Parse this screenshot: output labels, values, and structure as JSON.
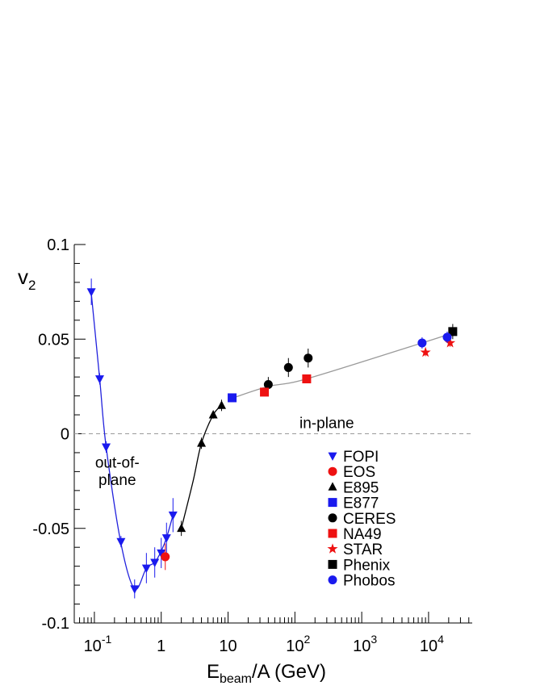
{
  "chart_data": {
    "type": "scatter",
    "xscale": "log",
    "xlim": [
      0.05,
      45000
    ],
    "ylim": [
      -0.1,
      0.1
    ],
    "grid": false,
    "legend_position": "bottom-right",
    "xlabel": {
      "main": "E",
      "sub": "beam",
      "tail": "/A (GeV)"
    },
    "ylabel": {
      "main": "v",
      "sub": "2"
    },
    "y_ticks": [
      {
        "v": -0.1,
        "label": "-0.1"
      },
      {
        "v": -0.05,
        "label": "-0.05"
      },
      {
        "v": 0,
        "label": "0"
      },
      {
        "v": 0.05,
        "label": "0.05"
      },
      {
        "v": 0.1,
        "label": "0.1"
      }
    ],
    "x_ticks": [
      {
        "v": 0.1,
        "base": "10",
        "exp": "-1"
      },
      {
        "v": 1,
        "base": "1",
        "exp": ""
      },
      {
        "v": 10,
        "base": "10",
        "exp": ""
      },
      {
        "v": 100,
        "base": "10",
        "exp": "2"
      },
      {
        "v": 1000,
        "base": "10",
        "exp": "3"
      },
      {
        "v": 10000,
        "base": "10",
        "exp": "4"
      }
    ],
    "annotations": [
      {
        "text": "in-plane",
        "x": 300,
        "y": 0.006
      },
      {
        "text": "out-of-",
        "x": 0.22,
        "y": -0.015
      },
      {
        "text": "plane",
        "x": 0.22,
        "y": -0.024
      }
    ],
    "zero_line": {
      "y": 0,
      "style": "dashed",
      "color": "#9a9a9a"
    },
    "curves": [
      {
        "color": "#2222dd",
        "x": [
          0.09,
          0.12,
          0.15,
          0.25,
          0.4,
          0.6,
          0.8,
          1.0,
          1.2,
          1.5
        ],
        "y": [
          0.074,
          0.029,
          -0.007,
          -0.058,
          -0.082,
          -0.071,
          -0.068,
          -0.062,
          -0.055,
          -0.043
        ]
      },
      {
        "color": "#000000",
        "x": [
          2.0,
          3.0,
          4.0,
          6.0,
          8.0
        ],
        "y": [
          -0.05,
          -0.025,
          -0.005,
          0.01,
          0.015
        ]
      },
      {
        "color": "#9a9a9a",
        "x": [
          12,
          40,
          150,
          8000,
          22000
        ],
        "y": [
          0.019,
          0.025,
          0.029,
          0.048,
          0.053
        ]
      }
    ],
    "series": [
      {
        "name": "FOPI",
        "marker": "triangle-down",
        "color": "#1a1aee",
        "x": [
          0.09,
          0.12,
          0.15,
          0.25,
          0.4,
          0.6,
          0.8,
          1.0,
          1.2,
          1.5
        ],
        "y": [
          0.075,
          0.029,
          -0.007,
          -0.057,
          -0.082,
          -0.071,
          -0.068,
          -0.063,
          -0.055,
          -0.043
        ],
        "err": [
          0.007,
          0.003,
          0.003,
          0.003,
          0.005,
          0.008,
          0.008,
          0.008,
          0.008,
          0.009
        ]
      },
      {
        "name": "EOS",
        "marker": "circle",
        "color": "#ee1111",
        "x": [
          1.15
        ],
        "y": [
          -0.065
        ],
        "err": [
          0.007
        ]
      },
      {
        "name": "E895",
        "marker": "triangle-up",
        "color": "#000000",
        "x": [
          2,
          4,
          6,
          8
        ],
        "y": [
          -0.05,
          -0.005,
          0.01,
          0.015
        ],
        "err": [
          0.004,
          0.003,
          0.002,
          0.003
        ]
      },
      {
        "name": "E877",
        "marker": "square",
        "color": "#1a1aee",
        "x": [
          11.5
        ],
        "y": [
          0.019
        ],
        "err": [
          0.002
        ]
      },
      {
        "name": "CERES",
        "marker": "circle",
        "color": "#000000",
        "x": [
          40,
          80,
          158
        ],
        "y": [
          0.026,
          0.035,
          0.04
        ],
        "err": [
          0.004,
          0.005,
          0.005
        ]
      },
      {
        "name": "NA49",
        "marker": "square",
        "color": "#ee1111",
        "x": [
          35,
          150
        ],
        "y": [
          0.022,
          0.029
        ],
        "err": [
          0.002,
          0.002
        ]
      },
      {
        "name": "STAR",
        "marker": "star",
        "color": "#ee1111",
        "x": [
          9000,
          21000
        ],
        "y": [
          0.043,
          0.048
        ],
        "err": [
          0.002,
          0.002
        ]
      },
      {
        "name": "Phenix",
        "marker": "square",
        "color": "#000000",
        "x": [
          23000
        ],
        "y": [
          0.054
        ],
        "err": [
          0.004
        ]
      },
      {
        "name": "Phobos",
        "marker": "circle",
        "color": "#1a1aee",
        "x": [
          8000,
          19000
        ],
        "y": [
          0.048,
          0.051
        ],
        "err": [
          0.003,
          0.003
        ]
      }
    ]
  }
}
